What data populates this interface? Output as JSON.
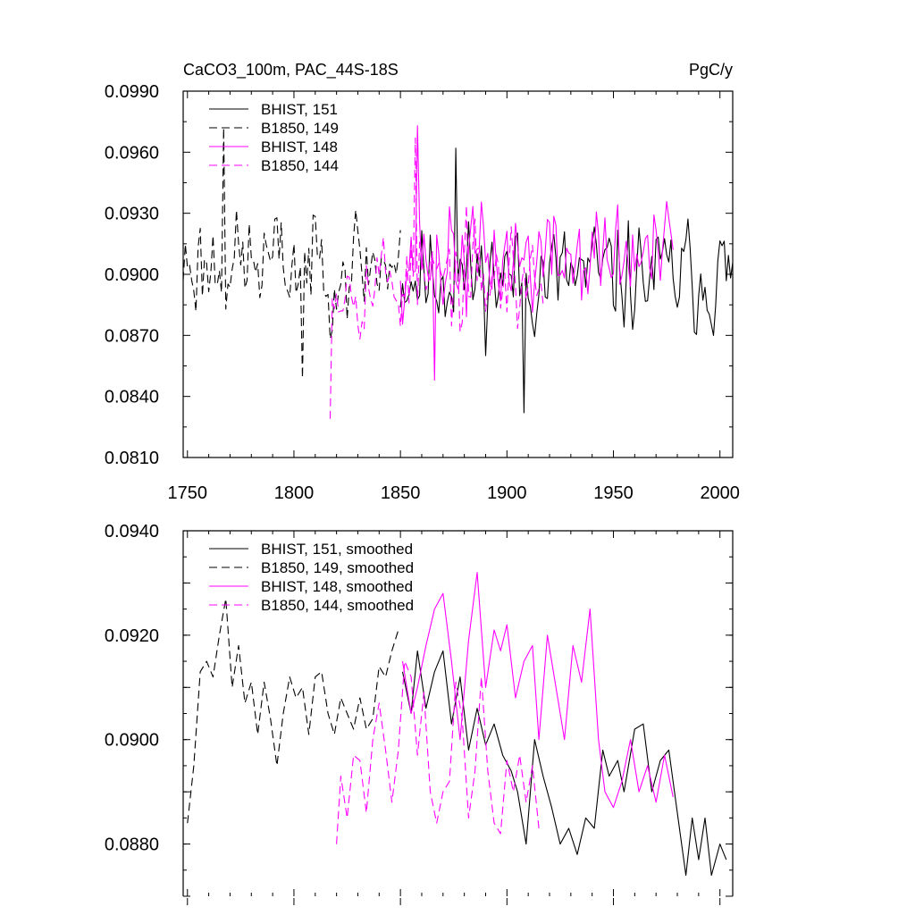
{
  "chart_data": [
    {
      "type": "line",
      "title": "CaCO3_100m, PAC_44S-18S",
      "units": "PgC/y",
      "xlim": [
        1748,
        2006
      ],
      "ylim": [
        0.081,
        0.099
      ],
      "xticks": [
        1750,
        1800,
        1850,
        1900,
        1950,
        2000
      ],
      "xtick_labels": [
        "1750",
        "1800",
        "1850",
        "1900",
        "1950",
        "2000"
      ],
      "yticks": [
        0.081,
        0.084,
        0.087,
        0.09,
        0.093,
        0.096,
        0.099
      ],
      "ytick_labels": [
        "0.0810",
        "0.0840",
        "0.0870",
        "0.0900",
        "0.0930",
        "0.0960",
        "0.0990"
      ],
      "legend_position": "top-left",
      "series": [
        {
          "name": "BHIST, 151",
          "color": "#000000",
          "dash": "solid",
          "x_start": 1850,
          "x_end": 2006,
          "mean": 0.0899,
          "sd": 0.0022,
          "peak": [
            1876,
            0.0962
          ],
          "trough": [
            1908,
            0.0832
          ],
          "seed": 11
        },
        {
          "name": "B1850, 149",
          "color": "#000000",
          "dash": "dashed",
          "x_start": 1748,
          "x_end": 1850,
          "mean": 0.0905,
          "sd": 0.0022,
          "peak": [
            1767,
            0.0972
          ],
          "trough": [
            1804,
            0.0849
          ],
          "seed": 23
        },
        {
          "name": "BHIST, 148",
          "color": "#ff00ff",
          "dash": "solid",
          "x_start": 1850,
          "x_end": 1978,
          "mean": 0.0908,
          "sd": 0.0022,
          "peak": [
            1858,
            0.0973
          ],
          "trough": [
            1866,
            0.0848
          ],
          "seed": 37
        },
        {
          "name": "B1850, 144",
          "color": "#ff00ff",
          "dash": "dashed",
          "x_start": 1817,
          "x_end": 1917,
          "mean": 0.0897,
          "sd": 0.0021,
          "peak": [
            1857,
            0.0967
          ],
          "trough": [
            1817,
            0.0829
          ],
          "seed": 53
        }
      ]
    },
    {
      "type": "line",
      "title": "",
      "xlim": [
        1748,
        2006
      ],
      "ylim": [
        0.087,
        0.094
      ],
      "xticks": [
        1750,
        1800,
        1850,
        1900,
        1950,
        2000
      ],
      "yticks": [
        0.088,
        0.09,
        0.092,
        0.094
      ],
      "ytick_labels": [
        "0.0880",
        "0.0900",
        "0.0920",
        "0.0940"
      ],
      "legend_position": "top-left",
      "series": [
        {
          "name": "BHIST, 151, smoothed",
          "color": "#000000",
          "dash": "solid",
          "points": [
            [
              1851,
              0.0913
            ],
            [
              1855,
              0.0905
            ],
            [
              1858,
              0.0917
            ],
            [
              1862,
              0.0906
            ],
            [
              1866,
              0.0913
            ],
            [
              1870,
              0.0917
            ],
            [
              1874,
              0.0903
            ],
            [
              1878,
              0.0912
            ],
            [
              1882,
              0.0898
            ],
            [
              1886,
              0.0906
            ],
            [
              1890,
              0.0899
            ],
            [
              1894,
              0.0903
            ],
            [
              1898,
              0.0897
            ],
            [
              1902,
              0.0894
            ],
            [
              1905,
              0.089
            ],
            [
              1909,
              0.088
            ],
            [
              1913,
              0.09
            ],
            [
              1917,
              0.0893
            ],
            [
              1921,
              0.0887
            ],
            [
              1925,
              0.088
            ],
            [
              1929,
              0.0883
            ],
            [
              1933,
              0.0878
            ],
            [
              1937,
              0.0885
            ],
            [
              1941,
              0.0883
            ],
            [
              1945,
              0.0898
            ],
            [
              1948,
              0.0893
            ],
            [
              1952,
              0.0896
            ],
            [
              1955,
              0.089
            ],
            [
              1960,
              0.0902
            ],
            [
              1964,
              0.0903
            ],
            [
              1968,
              0.089
            ],
            [
              1972,
              0.0896
            ],
            [
              1976,
              0.0898
            ],
            [
              1980,
              0.0886
            ],
            [
              1984,
              0.0874
            ],
            [
              1987,
              0.0885
            ],
            [
              1990,
              0.0877
            ],
            [
              1993,
              0.0885
            ],
            [
              1996,
              0.0874
            ],
            [
              2000,
              0.088
            ],
            [
              2003,
              0.0877
            ]
          ]
        },
        {
          "name": "B1850, 149, smoothed",
          "color": "#000000",
          "dash": "dashed",
          "points": [
            [
              1750,
              0.0884
            ],
            [
              1753,
              0.0895
            ],
            [
              1756,
              0.0913
            ],
            [
              1759,
              0.0915
            ],
            [
              1762,
              0.0912
            ],
            [
              1765,
              0.092
            ],
            [
              1768,
              0.0927
            ],
            [
              1771,
              0.091
            ],
            [
              1774,
              0.0918
            ],
            [
              1777,
              0.0907
            ],
            [
              1780,
              0.0911
            ],
            [
              1783,
              0.0901
            ],
            [
              1786,
              0.0911
            ],
            [
              1789,
              0.0904
            ],
            [
              1792,
              0.0895
            ],
            [
              1795,
              0.0905
            ],
            [
              1798,
              0.0912
            ],
            [
              1801,
              0.0908
            ],
            [
              1804,
              0.091
            ],
            [
              1807,
              0.0901
            ],
            [
              1810,
              0.0912
            ],
            [
              1813,
              0.0913
            ],
            [
              1816,
              0.0905
            ],
            [
              1819,
              0.0901
            ],
            [
              1822,
              0.0908
            ],
            [
              1825,
              0.0905
            ],
            [
              1828,
              0.0902
            ],
            [
              1831,
              0.0908
            ],
            [
              1834,
              0.0902
            ],
            [
              1837,
              0.0904
            ],
            [
              1840,
              0.0914
            ],
            [
              1843,
              0.0912
            ],
            [
              1846,
              0.0917
            ],
            [
              1849,
              0.0921
            ]
          ]
        },
        {
          "name": "BHIST, 148, smoothed",
          "color": "#ff00ff",
          "dash": "solid",
          "points": [
            [
              1851,
              0.0915
            ],
            [
              1855,
              0.0905
            ],
            [
              1858,
              0.091
            ],
            [
              1862,
              0.0918
            ],
            [
              1866,
              0.0925
            ],
            [
              1870,
              0.0928
            ],
            [
              1874,
              0.0915
            ],
            [
              1878,
              0.09
            ],
            [
              1882,
              0.0919
            ],
            [
              1886,
              0.0932
            ],
            [
              1890,
              0.091
            ],
            [
              1894,
              0.0921
            ],
            [
              1897,
              0.0917
            ],
            [
              1900,
              0.0922
            ],
            [
              1904,
              0.0908
            ],
            [
              1908,
              0.0915
            ],
            [
              1912,
              0.0918
            ],
            [
              1915,
              0.09
            ],
            [
              1919,
              0.092
            ],
            [
              1923,
              0.091
            ],
            [
              1927,
              0.09
            ],
            [
              1931,
              0.0918
            ],
            [
              1935,
              0.0911
            ],
            [
              1939,
              0.0925
            ],
            [
              1943,
              0.09
            ],
            [
              1946,
              0.089
            ],
            [
              1950,
              0.0887
            ],
            [
              1954,
              0.0892
            ],
            [
              1958,
              0.09
            ],
            [
              1962,
              0.089
            ],
            [
              1966,
              0.0895
            ],
            [
              1970,
              0.0888
            ],
            [
              1974,
              0.0897
            ],
            [
              1978,
              0.0889
            ]
          ]
        },
        {
          "name": "B1850, 144, smoothed",
          "color": "#ff00ff",
          "dash": "dashed",
          "points": [
            [
              1820,
              0.088
            ],
            [
              1822,
              0.0893
            ],
            [
              1825,
              0.0885
            ],
            [
              1828,
              0.0897
            ],
            [
              1831,
              0.0896
            ],
            [
              1834,
              0.0886
            ],
            [
              1837,
              0.09
            ],
            [
              1840,
              0.0907
            ],
            [
              1843,
              0.0898
            ],
            [
              1846,
              0.0888
            ],
            [
              1849,
              0.0898
            ],
            [
              1852,
              0.0915
            ],
            [
              1855,
              0.0912
            ],
            [
              1858,
              0.0897
            ],
            [
              1861,
              0.0909
            ],
            [
              1864,
              0.089
            ],
            [
              1867,
              0.0884
            ],
            [
              1870,
              0.089
            ],
            [
              1873,
              0.0892
            ],
            [
              1876,
              0.0911
            ],
            [
              1879,
              0.0904
            ],
            [
              1882,
              0.0885
            ],
            [
              1885,
              0.0894
            ],
            [
              1888,
              0.0912
            ],
            [
              1891,
              0.0894
            ],
            [
              1894,
              0.0884
            ],
            [
              1897,
              0.0882
            ],
            [
              1900,
              0.0896
            ],
            [
              1903,
              0.089
            ],
            [
              1906,
              0.0897
            ],
            [
              1909,
              0.0888
            ],
            [
              1912,
              0.0895
            ],
            [
              1915,
              0.0883
            ]
          ]
        }
      ]
    }
  ]
}
